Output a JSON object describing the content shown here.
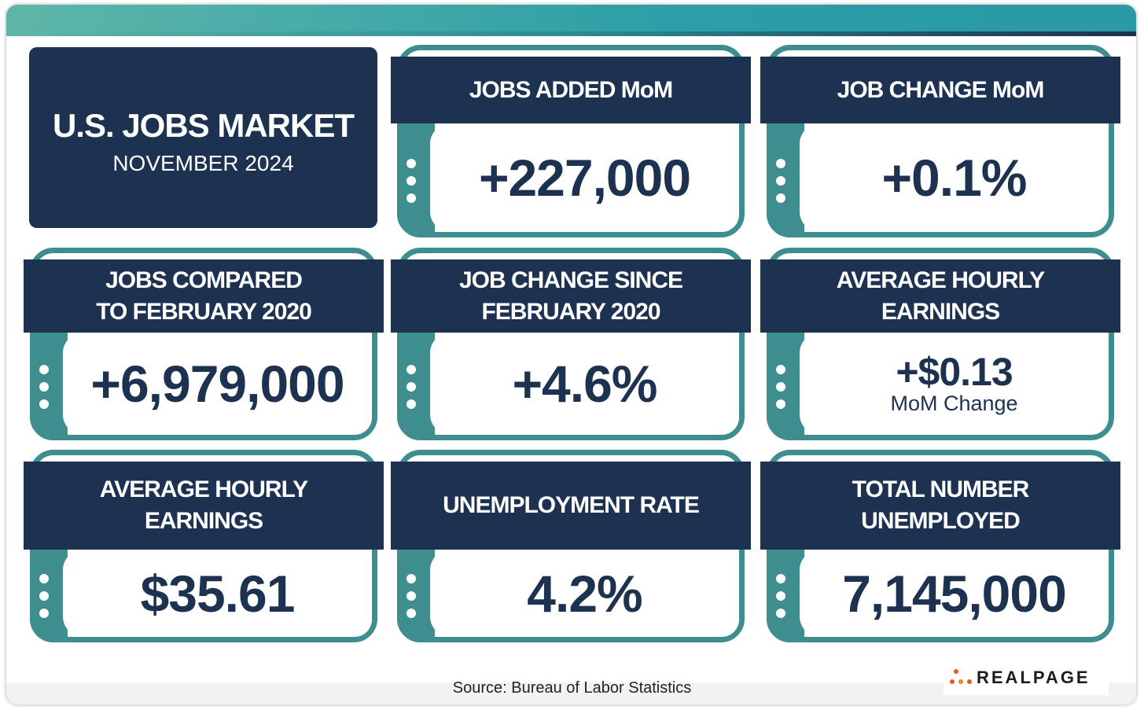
{
  "header": {
    "title": "U.S. JOBS MARKET",
    "subtitle": "NOVEMBER 2024"
  },
  "cards": [
    {
      "title": [
        "JOBS ADDED MoM"
      ],
      "value": "+227,000"
    },
    {
      "title": [
        "JOB CHANGE MoM"
      ],
      "value": "+0.1%"
    },
    {
      "title": [
        "JOBS COMPARED",
        "TO FEBRUARY 2020"
      ],
      "value": "+6,979,000"
    },
    {
      "title": [
        "JOB CHANGE SINCE",
        "FEBRUARY 2020"
      ],
      "value": "+4.6%"
    },
    {
      "title": [
        "AVERAGE HOURLY",
        "EARNINGS"
      ],
      "value": "+$0.13",
      "note": "MoM Change"
    },
    {
      "title": [
        "AVERAGE HOURLY",
        "EARNINGS"
      ],
      "value": "$35.61"
    },
    {
      "title": [
        "UNEMPLOYMENT RATE"
      ],
      "value": "4.2%"
    },
    {
      "title": [
        "TOTAL NUMBER",
        "UNEMPLOYED"
      ],
      "value": "7,145,000"
    }
  ],
  "source": "Source: Bureau of Labor Statistics",
  "logo": "REALPAGE"
}
